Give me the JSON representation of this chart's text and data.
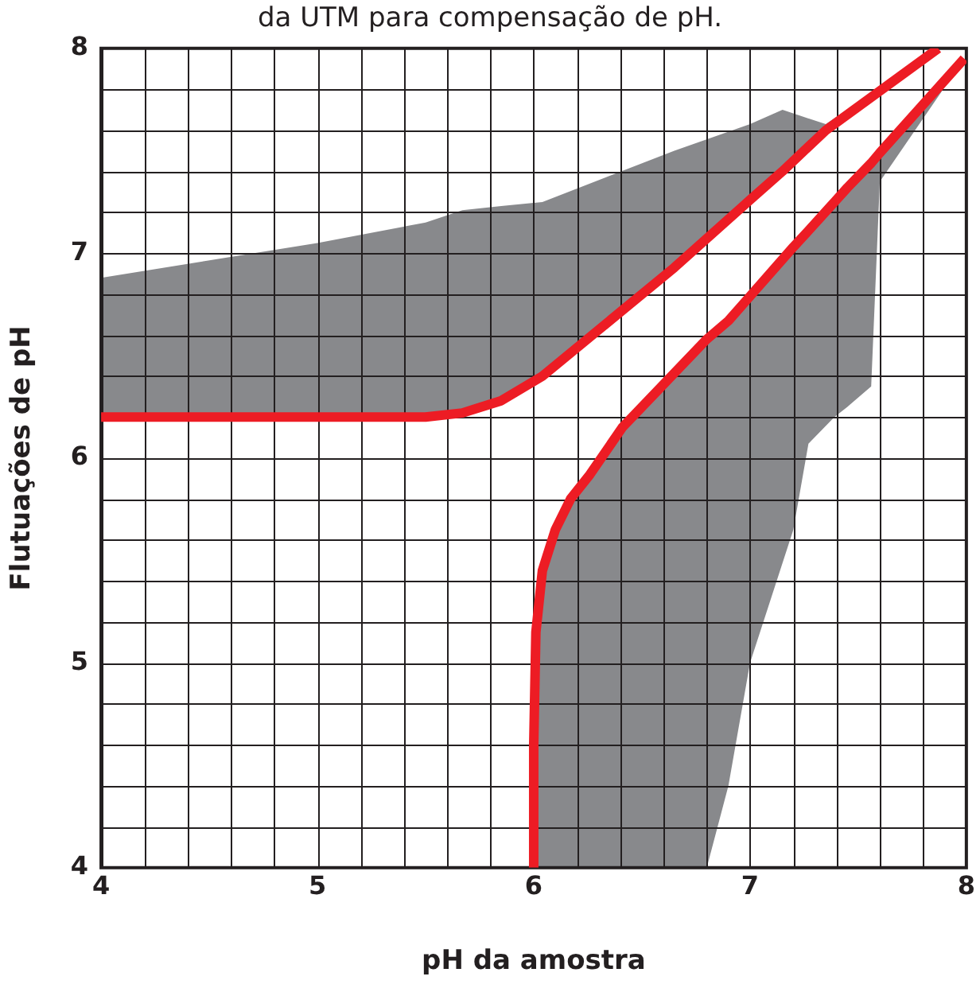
{
  "chart_data": {
    "type": "line",
    "title": "da UTM para compensação de pH.",
    "xlabel": "pH da amostra",
    "ylabel": "Flutuações de pH",
    "xlim": [
      4,
      8
    ],
    "ylim": [
      4,
      8
    ],
    "xticks": [
      4,
      {
        "value": 4.2,
        "label": null
      },
      {
        "value": 4.4,
        "label": null
      },
      {
        "value": 4.6,
        "label": null
      },
      {
        "value": 4.8,
        "label": null
      },
      5,
      {
        "value": 5.2,
        "label": null
      },
      {
        "value": 5.4,
        "label": null
      },
      {
        "value": 5.6,
        "label": null
      },
      {
        "value": 5.8,
        "label": null
      },
      6,
      {
        "value": 6.2,
        "label": null
      },
      {
        "value": 6.4,
        "label": null
      },
      {
        "value": 6.6,
        "label": null
      },
      {
        "value": 6.8,
        "label": null
      },
      7,
      {
        "value": 7.2,
        "label": null
      },
      {
        "value": 7.4,
        "label": null
      },
      {
        "value": 7.6,
        "label": null
      },
      {
        "value": 7.8,
        "label": null
      },
      8
    ],
    "yticks": [
      4,
      {
        "value": 4.2,
        "label": null
      },
      {
        "value": 4.4,
        "label": null
      },
      {
        "value": 4.6,
        "label": null
      },
      {
        "value": 4.8,
        "label": null
      },
      5,
      {
        "value": 5.2,
        "label": null
      },
      {
        "value": 5.4,
        "label": null
      },
      {
        "value": 5.6,
        "label": null
      },
      {
        "value": 5.8,
        "label": null
      },
      6,
      {
        "value": 6.2,
        "label": null
      },
      {
        "value": 6.4,
        "label": null
      },
      {
        "value": 6.6,
        "label": null
      },
      {
        "value": 6.8,
        "label": null
      },
      7,
      {
        "value": 7.2,
        "label": null
      },
      {
        "value": 7.4,
        "label": null
      },
      {
        "value": 7.6,
        "label": null
      },
      {
        "value": 7.8,
        "label": null
      },
      8
    ],
    "grid": true,
    "legend": false,
    "marker": "none",
    "line_style": "solid",
    "series": [
      {
        "type": "line",
        "color": "#ed1c24",
        "x": [
          4,
          5,
          5.5,
          5.67,
          5.85,
          6.04,
          6.65,
          7.0,
          7.15,
          7.35,
          7.87
        ],
        "values": [
          6.2,
          6.2,
          6.2,
          6.22,
          6.28,
          6.4,
          6.93,
          7.26,
          7.4,
          7.6,
          8
        ],
        "lower": [
          6.2,
          6.2,
          6.2,
          6.22,
          6.28,
          6.4,
          6.93,
          7.26,
          7.4,
          7.6,
          8
        ],
        "upper": [
          6.88,
          7.05,
          7.15,
          7.21,
          7.23,
          7.25,
          7.5,
          7.63,
          7.7,
          7.63,
          8
        ]
      },
      {
        "type": "line",
        "color": "#ed1c24",
        "x": [
          6.0,
          6.0,
          6.01,
          6.04,
          6.1,
          6.17,
          6.26,
          6.41,
          6.8,
          6.9,
          7.0,
          7.2,
          7.27,
          7.39,
          7.45,
          7.56,
          7.6,
          7.99
        ],
        "values": [
          4,
          4.6,
          5.15,
          5.45,
          5.65,
          5.8,
          5.92,
          6.15,
          6.58,
          6.67,
          6.79,
          7.03,
          7.11,
          7.25,
          7.32,
          7.44,
          7.49,
          7.95
        ],
        "lower": [
          4,
          4,
          4,
          4,
          4,
          4,
          4,
          4,
          4,
          4.4,
          5.0,
          5.65,
          6.07,
          6.2,
          6.25,
          6.35,
          7.35,
          7.95
        ],
        "upper": [
          4,
          4.6,
          5.15,
          5.45,
          5.65,
          5.8,
          5.92,
          6.15,
          6.58,
          6.67,
          6.79,
          7.03,
          7.11,
          7.25,
          7.32,
          7.44,
          7.49,
          7.95
        ]
      }
    ]
  }
}
